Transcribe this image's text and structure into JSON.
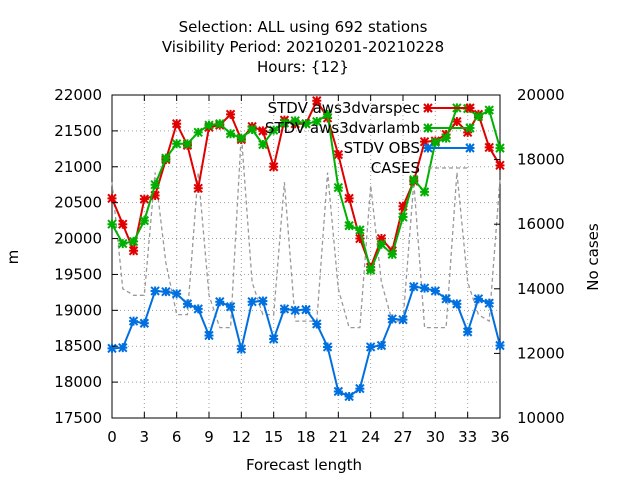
{
  "chart_data": {
    "type": "line",
    "title_lines": [
      "Selection: ALL using   692 stations",
      "Visibility   Period: 20210201-20210228",
      "Hours: {12}"
    ],
    "xlabel": "Forecast length",
    "ylabel": "m",
    "y2label": "No cases",
    "xlim": [
      0,
      36
    ],
    "ylim": [
      17500,
      22000
    ],
    "y2lim": [
      10000,
      20000
    ],
    "x_ticks": [
      0,
      3,
      6,
      9,
      12,
      15,
      18,
      21,
      24,
      27,
      30,
      33,
      36
    ],
    "y_ticks": [
      17500,
      18000,
      18500,
      19000,
      19500,
      20000,
      20500,
      21000,
      21500,
      22000
    ],
    "y2_ticks": [
      10000,
      12000,
      14000,
      16000,
      18000,
      20000
    ],
    "grid": true,
    "legend_position": "top-right",
    "x": [
      0,
      1,
      2,
      3,
      4,
      5,
      6,
      7,
      8,
      9,
      10,
      11,
      12,
      13,
      14,
      15,
      16,
      17,
      18,
      19,
      20,
      21,
      22,
      23,
      24,
      25,
      26,
      27,
      28,
      29,
      30,
      31,
      32,
      33,
      34,
      35,
      36
    ],
    "series": [
      {
        "name": "STDV aws3dvarspec",
        "color": "#e00000",
        "axis": "y",
        "values": [
          20560,
          20200,
          19830,
          20550,
          20600,
          21100,
          21600,
          21300,
          20700,
          21550,
          21580,
          21730,
          21380,
          21560,
          21500,
          21000,
          21650,
          21600,
          21600,
          21920,
          21680,
          21170,
          20560,
          20000,
          19600,
          20000,
          19830,
          20450,
          20800,
          21350,
          21360,
          21450,
          21630,
          21480,
          21730,
          21270,
          21020
        ]
      },
      {
        "name": "STDV aws3dvarlamb",
        "color": "#00b000",
        "axis": "y",
        "values": [
          20200,
          19930,
          19960,
          20250,
          20750,
          21120,
          21320,
          21320,
          21480,
          21580,
          21600,
          21460,
          21400,
          21520,
          21310,
          21510,
          21610,
          21640,
          21600,
          21630,
          21730,
          20710,
          20180,
          20120,
          19560,
          19920,
          19780,
          20300,
          20820,
          20650,
          21340,
          21400,
          21820,
          21810,
          21700,
          21790,
          21260
        ]
      },
      {
        "name": "STDV OBS",
        "color": "#0070e0",
        "axis": "y",
        "values": [
          18470,
          18480,
          18850,
          18820,
          19270,
          19260,
          19230,
          19090,
          19020,
          18650,
          19120,
          19050,
          18460,
          19120,
          19130,
          18600,
          19020,
          19000,
          19010,
          18810,
          18490,
          17870,
          17800,
          17910,
          18490,
          18510,
          18880,
          18870,
          19330,
          19310,
          19270,
          19160,
          19090,
          18700,
          19160,
          19100,
          18510
        ]
      },
      {
        "name": "CASES",
        "color": "#999999",
        "axis": "y2",
        "dashed": true,
        "values": [
          17300,
          14000,
          13800,
          13800,
          17600,
          14800,
          13200,
          13200,
          17600,
          13800,
          12800,
          12800,
          18800,
          14200,
          13200,
          13200,
          17300,
          13000,
          13000,
          13000,
          17600,
          14000,
          12800,
          12800,
          17200,
          14200,
          13000,
          13000,
          17300,
          12800,
          12800,
          12800,
          17600,
          14200,
          13200,
          13000,
          17400
        ]
      }
    ]
  }
}
